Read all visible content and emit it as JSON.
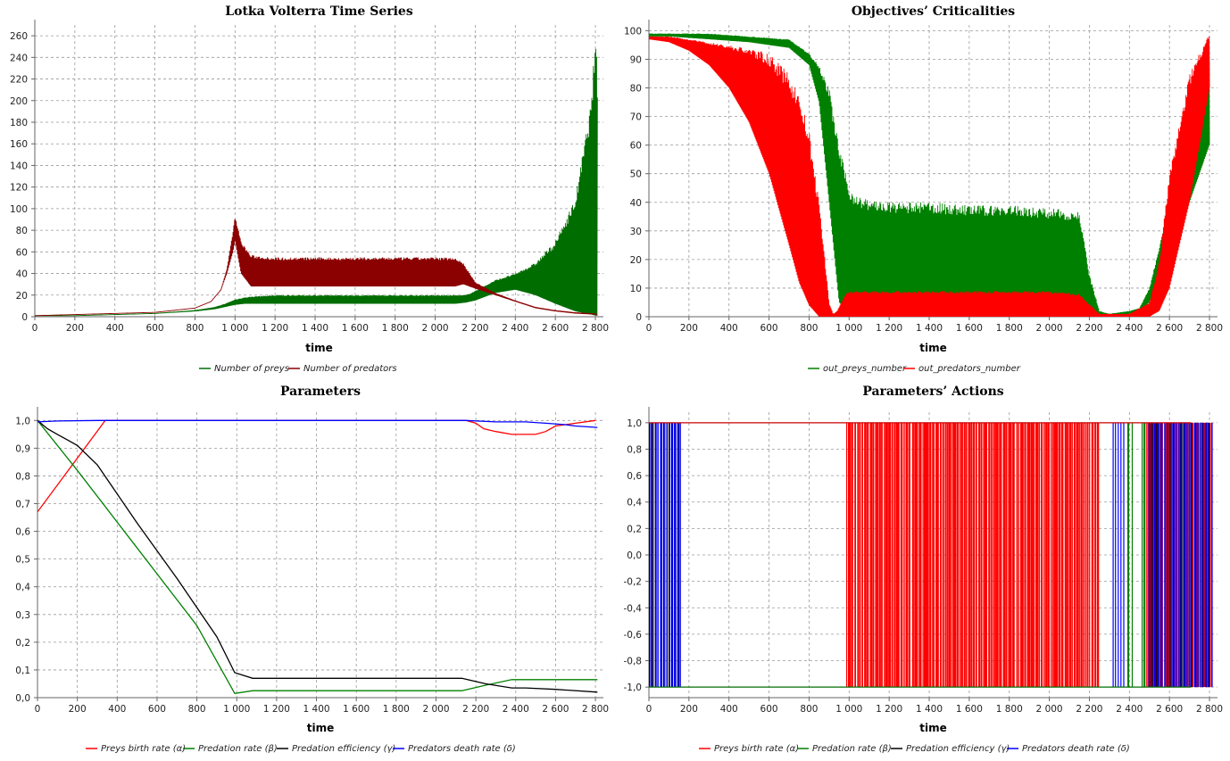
{
  "chart_data": [
    {
      "type": "line",
      "title": "Lotka Volterra Time Series",
      "xlabel": "time",
      "ylabel": "",
      "xlim": [
        0,
        2840
      ],
      "ylim": [
        0,
        270
      ],
      "xticks": [
        "0",
        "200",
        "400",
        "600",
        "800",
        "1 000",
        "1 200",
        "1 400",
        "1 600",
        "1 800",
        "2 000",
        "2 200",
        "2 400",
        "2 600",
        "2 800"
      ],
      "yticks": [
        "0",
        "20",
        "40",
        "60",
        "80",
        "100",
        "120",
        "140",
        "160",
        "180",
        "200",
        "220",
        "240",
        "260"
      ],
      "grid": true,
      "legend_position": "bottom",
      "series": [
        {
          "name": "Number of preys",
          "color": "#006d00",
          "style": "oscillating",
          "x": [
            0,
            200,
            400,
            600,
            800,
            900,
            950,
            1000,
            1050,
            1100,
            1200,
            1400,
            1600,
            1800,
            2000,
            2100,
            2150,
            2200,
            2300,
            2400,
            2500,
            2600,
            2700,
            2780,
            2800,
            2810
          ],
          "low": [
            1,
            1,
            2,
            3,
            5,
            7,
            9,
            11,
            12,
            12,
            12,
            12,
            12,
            12,
            12,
            12,
            13,
            15,
            22,
            25,
            20,
            12,
            5,
            2,
            1,
            1
          ],
          "high": [
            1,
            1,
            2,
            3,
            6,
            9,
            12,
            16,
            18,
            19,
            20,
            20,
            20,
            20,
            20,
            20,
            20,
            24,
            34,
            40,
            50,
            70,
            110,
            200,
            265,
            225
          ]
        },
        {
          "name": "Number of predators",
          "color": "#8b0000",
          "style": "oscillating",
          "x": [
            0,
            200,
            400,
            600,
            800,
            880,
            930,
            960,
            990,
            1000,
            1030,
            1080,
            1200,
            1400,
            1600,
            1800,
            2000,
            2100,
            2140,
            2200,
            2300,
            2400,
            2500,
            2600,
            2700,
            2800,
            2810
          ],
          "low": [
            1,
            2,
            3,
            4,
            8,
            14,
            25,
            40,
            60,
            70,
            40,
            28,
            28,
            28,
            28,
            28,
            28,
            28,
            30,
            26,
            20,
            14,
            8,
            5,
            3,
            2,
            1
          ],
          "high": [
            1,
            2,
            3,
            4,
            8,
            14,
            25,
            45,
            80,
            94,
            70,
            57,
            55,
            55,
            55,
            55,
            55,
            55,
            50,
            32,
            22,
            15,
            9,
            6,
            4,
            3,
            2
          ]
        }
      ]
    },
    {
      "type": "line",
      "title": "Objectives’ Criticalities",
      "xlabel": "time",
      "ylabel": "",
      "xlim": [
        0,
        2840
      ],
      "ylim": [
        0,
        102
      ],
      "xticks": [
        "0",
        "200",
        "400",
        "600",
        "800",
        "1 000",
        "1 200",
        "1 400",
        "1 600",
        "1 800",
        "2 000",
        "2 200",
        "2 400",
        "2 600",
        "2 800"
      ],
      "yticks": [
        "0",
        "10",
        "20",
        "30",
        "40",
        "50",
        "60",
        "70",
        "80",
        "90",
        "100"
      ],
      "grid": true,
      "legend_position": "bottom",
      "series": [
        {
          "name": "out_preys_number",
          "color": "#008000",
          "style": "oscillating",
          "x": [
            0,
            100,
            300,
            500,
            700,
            800,
            850,
            900,
            950,
            1000,
            1050,
            1100,
            1200,
            1400,
            1600,
            1800,
            2000,
            2150,
            2200,
            2250,
            2300,
            2400,
            2450,
            2500,
            2600,
            2700,
            2800
          ],
          "low": [
            98,
            98,
            97,
            96,
            94,
            88,
            75,
            40,
            5,
            2,
            1,
            1,
            1,
            1,
            1,
            1,
            1,
            1,
            0,
            0,
            0,
            1,
            2,
            5,
            20,
            40,
            60
          ],
          "high": [
            99,
            99,
            99,
            98,
            97,
            92,
            88,
            80,
            60,
            45,
            42,
            41,
            40,
            40,
            39,
            39,
            38,
            37,
            15,
            2,
            1,
            2,
            3,
            10,
            40,
            80,
            99
          ]
        },
        {
          "name": "out_predators_number",
          "color": "#ff0000",
          "style": "oscillating",
          "x": [
            0,
            100,
            200,
            300,
            400,
            500,
            600,
            700,
            750,
            800,
            850,
            880,
            900,
            920,
            940,
            960,
            980,
            1000,
            1050,
            1200,
            1400,
            1600,
            1800,
            2000,
            2150,
            2250,
            2400,
            2500,
            2550,
            2600,
            2700,
            2800
          ],
          "low": [
            97,
            96,
            93,
            88,
            80,
            68,
            50,
            25,
            12,
            4,
            0,
            0,
            0,
            0,
            0,
            0,
            0,
            0,
            0,
            0,
            0,
            0,
            0,
            0,
            0,
            0,
            0,
            0,
            2,
            10,
            40,
            80
          ],
          "high": [
            98,
            98,
            97,
            96,
            95,
            94,
            92,
            85,
            78,
            65,
            40,
            20,
            5,
            1,
            2,
            5,
            8,
            9,
            9,
            9,
            9,
            9,
            9,
            9,
            8,
            1,
            1,
            5,
            20,
            50,
            85,
            100
          ]
        }
      ]
    },
    {
      "type": "line",
      "title": "Parameters",
      "xlabel": "time",
      "ylabel": "",
      "xlim": [
        0,
        2840
      ],
      "ylim": [
        0,
        1.03
      ],
      "xticks": [
        "0",
        "200",
        "400",
        "600",
        "800",
        "1 000",
        "1 200",
        "1 400",
        "1 600",
        "1 800",
        "2 000",
        "2 200",
        "2 400",
        "2 600",
        "2 800"
      ],
      "yticks": [
        "0,0",
        "0,1",
        "0,2",
        "0,3",
        "0,4",
        "0,5",
        "0,6",
        "0,7",
        "0,8",
        "0,9",
        "1,0"
      ],
      "grid": true,
      "legend_position": "bottom",
      "series": [
        {
          "name": "Preys birth rate (α)",
          "color": "#ff0000",
          "x": [
            0,
            340,
            2000,
            2150,
            2200,
            2240,
            2300,
            2380,
            2500,
            2550,
            2600,
            2700,
            2800
          ],
          "y": [
            0.67,
            1.0,
            1.0,
            1.0,
            0.99,
            0.97,
            0.96,
            0.95,
            0.95,
            0.96,
            0.98,
            0.99,
            1.0
          ]
        },
        {
          "name": "Predation rate (β)",
          "color": "#008000",
          "x": [
            0,
            200,
            500,
            800,
            990,
            1080,
            1300,
            1600,
            2000,
            2130,
            2250,
            2380,
            2500,
            2810
          ],
          "y": [
            1.0,
            0.82,
            0.54,
            0.26,
            0.015,
            0.025,
            0.025,
            0.025,
            0.025,
            0.025,
            0.045,
            0.065,
            0.065,
            0.065
          ]
        },
        {
          "name": "Predation efficiency (γ)",
          "color": "#000000",
          "x": [
            0,
            50,
            100,
            150,
            200,
            300,
            500,
            700,
            900,
            990,
            1080,
            1400,
            1800,
            2130,
            2250,
            2380,
            2450,
            2600,
            2810
          ],
          "y": [
            1.0,
            0.97,
            0.95,
            0.93,
            0.91,
            0.84,
            0.63,
            0.43,
            0.22,
            0.09,
            0.07,
            0.07,
            0.07,
            0.07,
            0.05,
            0.035,
            0.035,
            0.03,
            0.02
          ]
        },
        {
          "name": "Predators death rate (δ)",
          "color": "#0000ff",
          "x": [
            0,
            100,
            300,
            1000,
            2000,
            2150,
            2300,
            2450,
            2550,
            2650,
            2700,
            2810
          ],
          "y": [
            0.995,
            0.998,
            1.0,
            1.0,
            1.0,
            1.0,
            0.995,
            0.995,
            0.99,
            0.985,
            0.98,
            0.975
          ]
        }
      ]
    },
    {
      "type": "line",
      "title": "Parameters’ Actions",
      "xlabel": "time",
      "ylabel": "",
      "xlim": [
        0,
        2840
      ],
      "ylim": [
        -1.08,
        1.08
      ],
      "xticks": [
        "0",
        "200",
        "400",
        "600",
        "800",
        "1 000",
        "1 200",
        "1 400",
        "1 600",
        "1 800",
        "2 000",
        "2 200",
        "2 400",
        "2 600",
        "2 800"
      ],
      "yticks": [
        "-1,0",
        "-0,8",
        "-0,6",
        "-0,4",
        "-0,2",
        "0,0",
        "0,2",
        "0,4",
        "0,6",
        "0,8",
        "1,0"
      ],
      "grid": true,
      "legend_position": "bottom",
      "series": [
        {
          "name": "Preys birth rate (α)",
          "color": "#ff0000",
          "style": "switching",
          "bands": [
            [
              990,
              2250
            ],
            [
              2480,
              2810
            ]
          ],
          "density": 9
        },
        {
          "name": "Predation rate (β)",
          "color": "#008000",
          "style": "switching",
          "bands": [
            [
              2390,
              2410
            ],
            [
              2460,
              2480
            ]
          ],
          "density": 3
        },
        {
          "name": "Predation efficiency (γ)",
          "color": "#000000",
          "style": "switching",
          "bands": [
            [
              0,
              160
            ],
            [
              2500,
              2800
            ]
          ],
          "density": 3
        },
        {
          "name": "Predators death rate (δ)",
          "color": "#0000ff",
          "style": "switching",
          "bands": [
            [
              0,
              160
            ],
            [
              2320,
              2370
            ],
            [
              2500,
              2810
            ]
          ],
          "density": 4
        }
      ]
    }
  ]
}
